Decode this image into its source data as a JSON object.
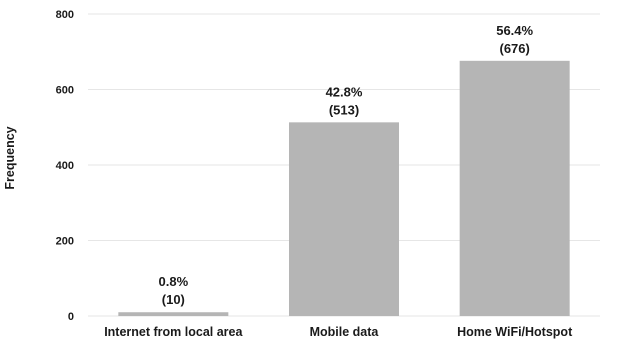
{
  "chart_data": {
    "type": "bar",
    "categories": [
      "Internet from local area",
      "Mobile data",
      "Home WiFi/Hotspot"
    ],
    "values": [
      10,
      513,
      676
    ],
    "percent_labels": [
      "0.8%",
      "42.8%",
      "56.4%"
    ],
    "count_labels": [
      "(10)",
      "(513)",
      "(676)"
    ],
    "title": "",
    "xlabel": "",
    "ylabel": "Frequency",
    "ylim": [
      0,
      800
    ],
    "yticks": [
      0,
      200,
      400,
      600,
      800
    ],
    "grid": true,
    "bar_color": "#b5b5b5",
    "grid_color": "#e6e6e6",
    "text_color": "#1a1a1a"
  }
}
